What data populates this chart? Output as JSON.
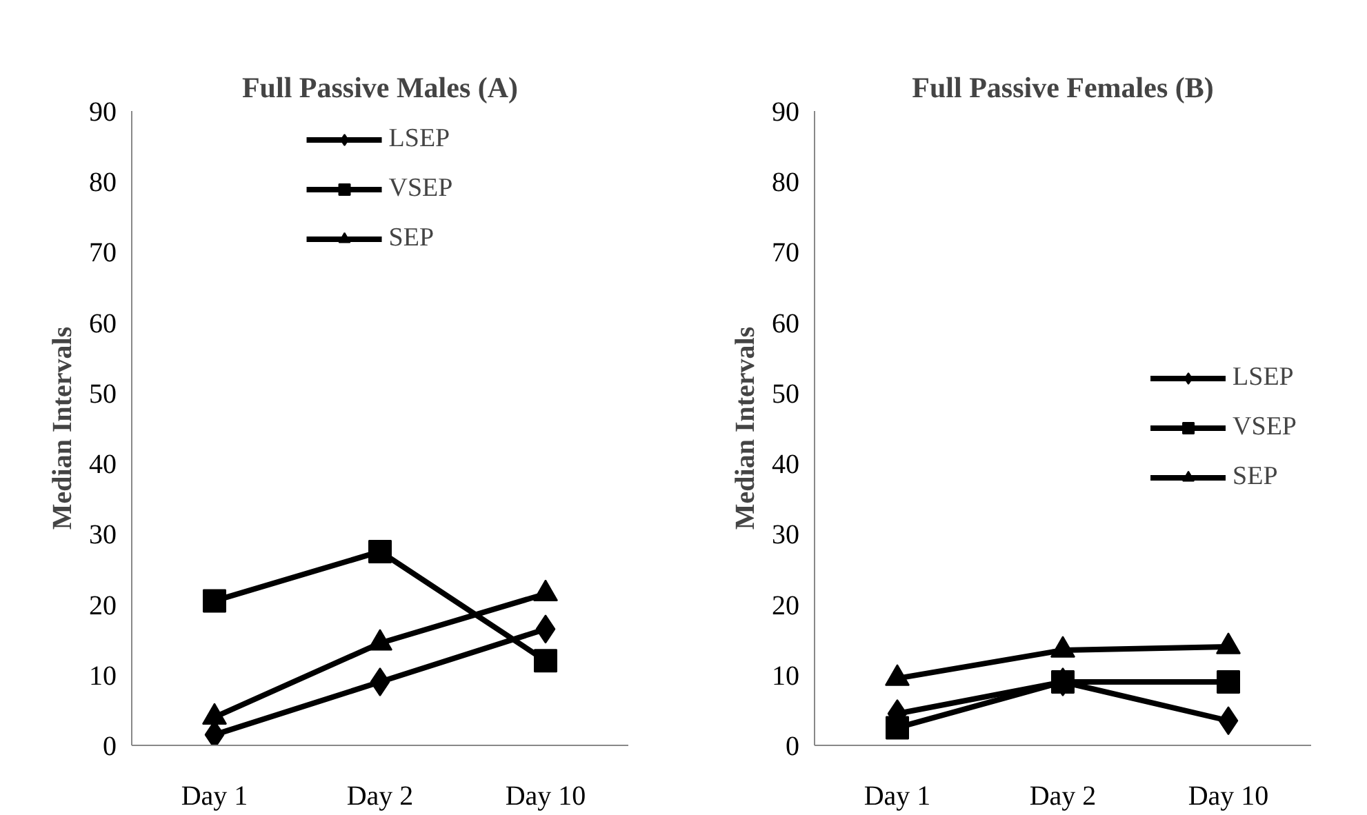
{
  "chart_data": [
    {
      "type": "line",
      "title": "Full Passive Males (A)",
      "ylabel": "Median Intervals",
      "categories": [
        "Day 1",
        "Day 2",
        "Day 10"
      ],
      "ylim": [
        0,
        90
      ],
      "yticks": [
        0,
        10,
        20,
        30,
        40,
        50,
        60,
        70,
        80,
        90
      ],
      "grid": false,
      "legend": "top",
      "line_style": "solid",
      "series": [
        {
          "name": "LSEP",
          "color": "#000000",
          "marker": "diamond",
          "values": [
            1.5,
            9,
            16.5
          ]
        },
        {
          "name": "VSEP",
          "color": "#000000",
          "marker": "square",
          "values": [
            20.5,
            27.5,
            12
          ]
        },
        {
          "name": "SEP",
          "color": "#000000",
          "marker": "triangle",
          "values": [
            4,
            14.5,
            21.5
          ]
        }
      ]
    },
    {
      "type": "line",
      "title": "Full Passive Females (B)",
      "ylabel": "Median Intervals",
      "categories": [
        "Day 1",
        "Day 2",
        "Day 10"
      ],
      "ylim": [
        0,
        90
      ],
      "yticks": [
        0,
        10,
        20,
        30,
        40,
        50,
        60,
        70,
        80,
        90
      ],
      "grid": false,
      "legend": "right",
      "line_style": "solid",
      "series": [
        {
          "name": "LSEP",
          "color": "#000000",
          "marker": "diamond",
          "values": [
            4.5,
            9,
            3.5
          ]
        },
        {
          "name": "VSEP",
          "color": "#000000",
          "marker": "square",
          "values": [
            2.5,
            9,
            9
          ]
        },
        {
          "name": "SEP",
          "color": "#000000",
          "marker": "triangle",
          "values": [
            9.5,
            13.5,
            14
          ]
        }
      ]
    }
  ]
}
